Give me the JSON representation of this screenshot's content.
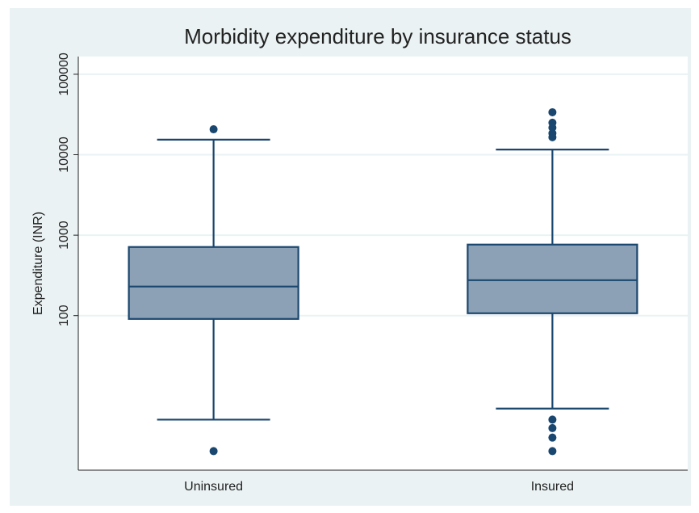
{
  "chart_data": {
    "type": "box",
    "title": "Morbidity expenditure by insurance status",
    "y_label": "Expenditure (INR)",
    "categories": [
      "Uninsured",
      "Insured"
    ],
    "boxes": [
      {
        "low": 5.1,
        "q1": 91,
        "median": 230,
        "q3": 713,
        "high": 15400,
        "outliers": [
          20700,
          2.07
        ]
      },
      {
        "low": 7.0,
        "q1": 107,
        "median": 276,
        "q3": 764,
        "high": 11600,
        "outliers": [
          33700,
          25000,
          21700,
          18500,
          16500,
          5.1,
          4.0,
          3.05,
          2.07
        ]
      }
    ],
    "color": "#8ca1b5",
    "edge_color": "#1a476f",
    "log_scale": true,
    "ylim": [
      1.2,
      166000
    ],
    "yticks": [
      100,
      1000,
      10000,
      100000
    ],
    "grid": true
  }
}
